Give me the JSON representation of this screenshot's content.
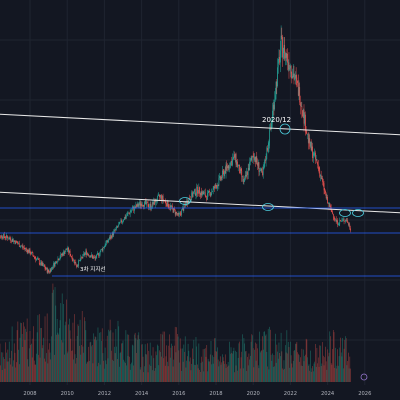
{
  "chart_data": {
    "type": "candlestick",
    "title": "",
    "xlabel": "",
    "ylabel": "",
    "x_ticks": [
      "2008",
      "2010",
      "2012",
      "2014",
      "2016",
      "2018",
      "2020",
      "2022",
      "2024",
      "2026"
    ],
    "grid": true,
    "price_series": [
      [
        "2006-01",
        11
      ],
      [
        "2006-07",
        12
      ],
      [
        "2007-01",
        11
      ],
      [
        "2007-07",
        9
      ],
      [
        "2008-01",
        7
      ],
      [
        "2008-07",
        4
      ],
      [
        "2009-01",
        1
      ],
      [
        "2009-07",
        5
      ],
      [
        "2010-01",
        8
      ],
      [
        "2010-07",
        3
      ],
      [
        "2011-01",
        7
      ],
      [
        "2011-07",
        5
      ],
      [
        "2012-01",
        9
      ],
      [
        "2012-07",
        13
      ],
      [
        "2013-01",
        17
      ],
      [
        "2013-07",
        20
      ],
      [
        "2014-01",
        22
      ],
      [
        "2014-07",
        21
      ],
      [
        "2015-01",
        24
      ],
      [
        "2015-07",
        21
      ],
      [
        "2016-01",
        18
      ],
      [
        "2016-07",
        23
      ],
      [
        "2017-01",
        26
      ],
      [
        "2017-07",
        24
      ],
      [
        "2018-01",
        27
      ],
      [
        "2018-07",
        32
      ],
      [
        "2019-01",
        36
      ],
      [
        "2019-07",
        28
      ],
      [
        "2020-01",
        37
      ],
      [
        "2020-07",
        30
      ],
      [
        "2020-12",
        44
      ],
      [
        "2021-07",
        70
      ],
      [
        "2022-01",
        64
      ],
      [
        "2022-07",
        55
      ],
      [
        "2023-01",
        40
      ],
      [
        "2023-07",
        33
      ],
      [
        "2024-01",
        22
      ],
      [
        "2024-07",
        16
      ],
      [
        "2025-01",
        17
      ],
      [
        "2025-04",
        14
      ]
    ],
    "volume_series": [
      [
        "2006",
        35
      ],
      [
        "2007",
        55
      ],
      [
        "2008",
        60
      ],
      [
        "2009",
        85
      ],
      [
        "2010",
        65
      ],
      [
        "2011",
        50
      ],
      [
        "2012",
        55
      ],
      [
        "2013",
        45
      ],
      [
        "2014",
        35
      ],
      [
        "2015",
        50
      ],
      [
        "2016",
        40
      ],
      [
        "2017",
        38
      ],
      [
        "2018",
        35
      ],
      [
        "2019",
        42
      ],
      [
        "2020",
        48
      ],
      [
        "2021",
        45
      ],
      [
        "2022",
        40
      ],
      [
        "2023",
        35
      ],
      [
        "2024",
        45
      ],
      [
        "2025",
        30
      ]
    ],
    "annotations": [
      {
        "text": "2020/12",
        "x": "2020-12"
      },
      {
        "text": "3차 지지선",
        "x": "2009-06"
      }
    ]
  }
}
